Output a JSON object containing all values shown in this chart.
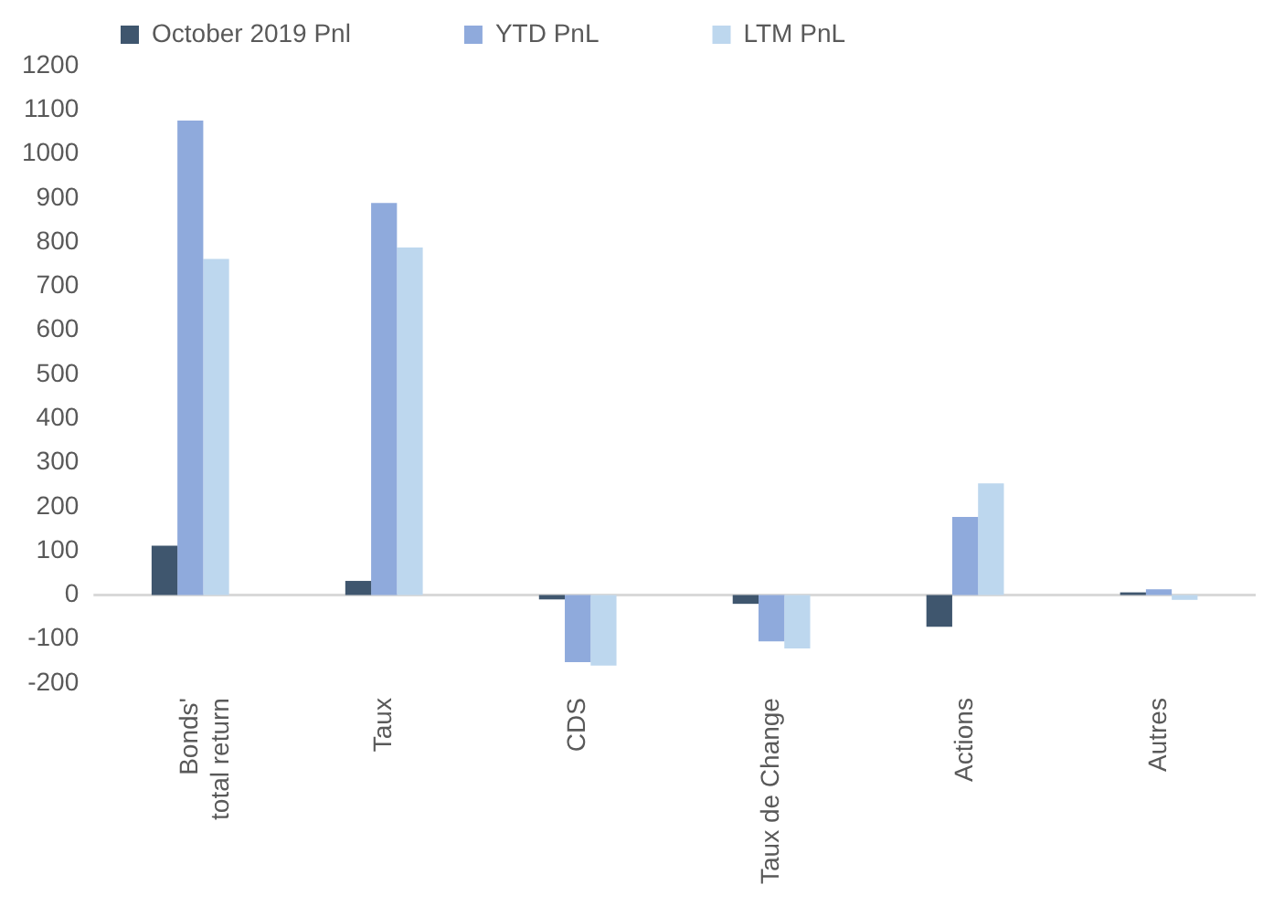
{
  "chart_data": {
    "type": "bar",
    "categories": [
      "Bonds'\ntotal return",
      "Taux",
      "CDS",
      "Taux de Change",
      "Actions",
      "Autres"
    ],
    "series": [
      {
        "name": "October 2019 Pnl",
        "color": "#3f566e",
        "values": [
          112,
          32,
          -10,
          -20,
          -72,
          6
        ]
      },
      {
        "name": "YTD PnL",
        "color": "#8faadc",
        "values": [
          1076,
          889,
          -152,
          -105,
          177,
          13
        ]
      },
      {
        "name": "LTM PnL",
        "color": "#bdd7ee",
        "values": [
          762,
          788,
          -160,
          -121,
          253,
          -11
        ]
      }
    ],
    "ylim": [
      -200,
      1200
    ],
    "yticks": [
      -200,
      -100,
      0,
      100,
      200,
      300,
      400,
      500,
      600,
      700,
      800,
      900,
      1000,
      1100,
      1200
    ],
    "ref_lines": [
      {
        "axis": "y",
        "value": 0,
        "color": "#d9d9d9"
      }
    ],
    "grid": false,
    "legend": "top"
  }
}
